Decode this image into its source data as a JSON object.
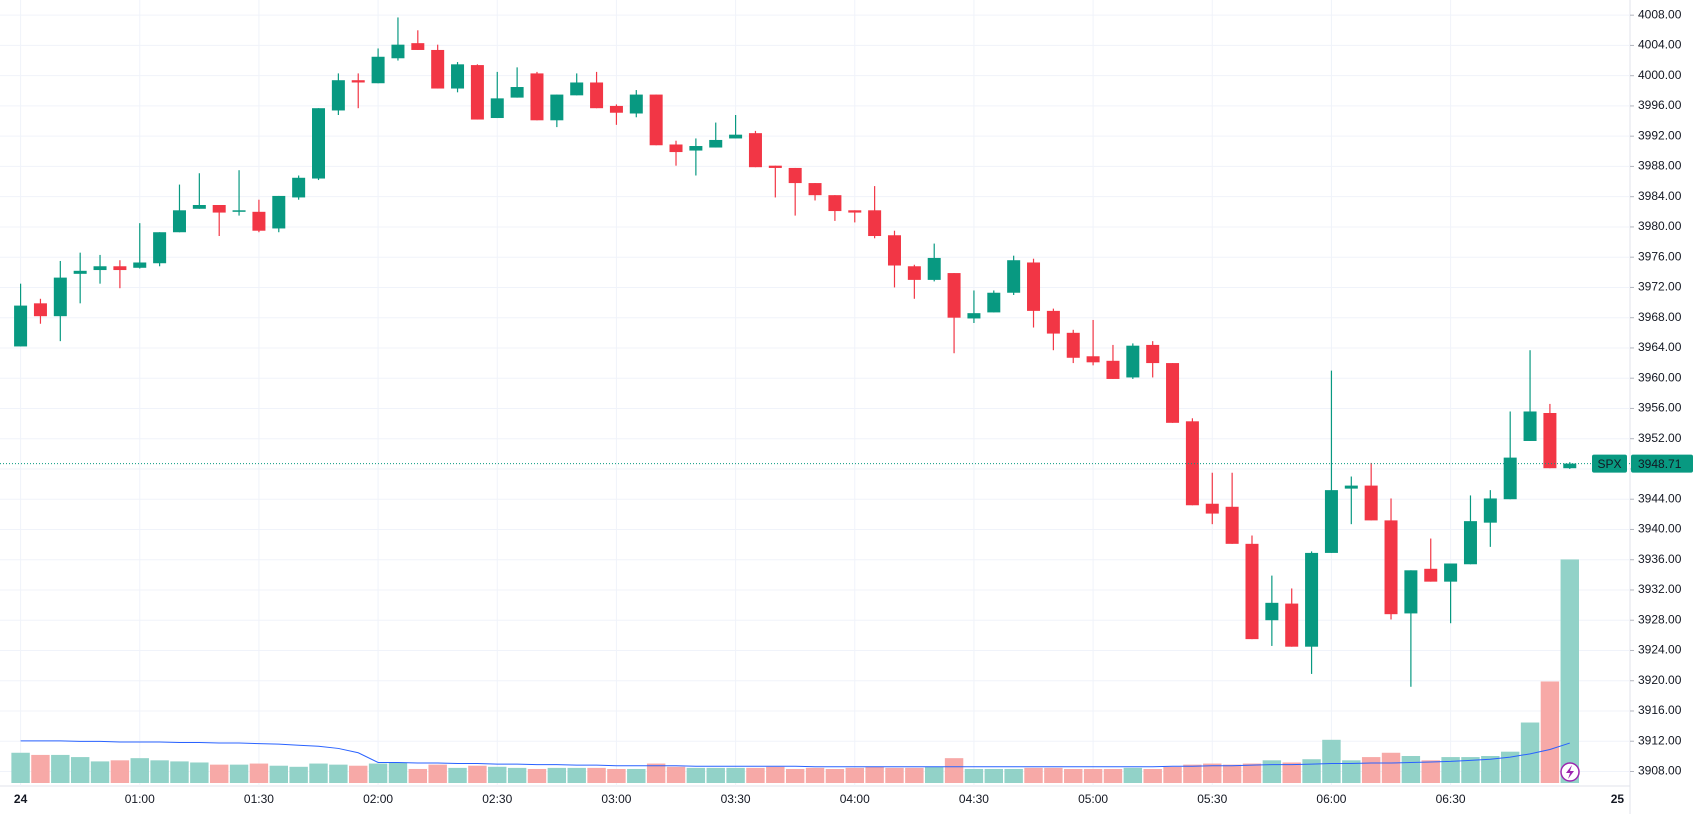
{
  "chart_data": {
    "type": "candlestick",
    "symbol": "SPX",
    "last": 3948.71,
    "categories": [
      "24",
      null,
      null,
      null,
      null,
      null,
      "01:00",
      null,
      null,
      null,
      null,
      null,
      "01:30",
      null,
      null,
      null,
      null,
      null,
      "02:00",
      null,
      null,
      null,
      null,
      null,
      "02:30",
      null,
      null,
      null,
      null,
      null,
      "03:00",
      null,
      null,
      null,
      null,
      null,
      "03:30",
      null,
      null,
      null,
      null,
      null,
      "04:00",
      null,
      null,
      null,
      null,
      null,
      "04:30",
      null,
      null,
      null,
      null,
      null,
      "05:00",
      null,
      null,
      null,
      null,
      null,
      "05:30",
      null,
      null,
      null,
      null,
      null,
      "06:00",
      null,
      null,
      null,
      null,
      null,
      "06:30",
      null,
      null,
      null,
      null,
      null,
      null
    ],
    "next_day_label": "25",
    "open": [
      3964.2,
      3969.9,
      3968.2,
      3973.8,
      3974.3,
      3974.8,
      3974.6,
      3975.2,
      3979.3,
      3982.4,
      3982.9,
      3982.0,
      3982.0,
      3979.8,
      3983.9,
      3986.4,
      3995.4,
      3999.4,
      3999.0,
      4002.3,
      4004.3,
      4003.4,
      3998.3,
      4001.4,
      3994.4,
      3997.1,
      4000.3,
      3994.1,
      3997.4,
      3999.1,
      3996.0,
      3995.0,
      3997.5,
      3990.9,
      3990.1,
      3990.5,
      3991.7,
      3992.4,
      3988.1,
      3987.8,
      3985.8,
      3984.2,
      3982.2,
      3982.2,
      3978.9,
      3974.8,
      3973.0,
      3973.9,
      3967.9,
      3968.7,
      3971.3,
      3975.3,
      3968.9,
      3966.0,
      3962.9,
      3962.3,
      3960.1,
      3964.4,
      3962.0,
      3954.3,
      3943.4,
      3943.0,
      3938.1,
      3928.0,
      3930.2,
      3924.5,
      3936.9,
      3945.4,
      3945.8,
      3941.2,
      3928.9,
      3934.8,
      3933.1,
      3935.4,
      3940.9,
      3944.0,
      3951.7,
      3955.4,
      3948.1
    ],
    "high": [
      3972.5,
      3970.5,
      3975.5,
      3976.6,
      3976.3,
      3975.6,
      3980.5,
      3979.3,
      3985.6,
      3987.1,
      3982.9,
      3987.5,
      3983.6,
      3984.1,
      3986.8,
      3995.7,
      4000.3,
      4000.3,
      4003.6,
      4007.7,
      4006.0,
      4004.1,
      4001.8,
      4001.5,
      4000.5,
      4001.1,
      4000.5,
      3997.5,
      4000.3,
      4000.5,
      3996.2,
      3998.1,
      3997.5,
      3991.4,
      3991.7,
      3993.8,
      3994.8,
      3992.7,
      3988.1,
      3987.8,
      3985.8,
      3984.2,
      3982.2,
      3985.4,
      3979.5,
      3975.0,
      3977.8,
      3973.9,
      3971.6,
      3971.6,
      3976.2,
      3975.8,
      3969.2,
      3966.4,
      3967.7,
      3964.4,
      3964.6,
      3964.9,
      3962.0,
      3954.7,
      3947.5,
      3947.5,
      3939.2,
      3933.9,
      3932.2,
      3937.1,
      3961.0,
      3947.0,
      3948.8,
      3944.1,
      3934.6,
      3938.8,
      3935.5,
      3944.5,
      3945.2,
      3955.6,
      3963.7,
      3956.6,
      3948.9
    ],
    "low": [
      3964.2,
      3967.2,
      3964.9,
      3969.9,
      3972.5,
      3971.9,
      3974.5,
      3974.8,
      3979.3,
      3982.4,
      3978.8,
      3981.5,
      3979.3,
      3979.3,
      3983.6,
      3986.2,
      3994.8,
      3995.7,
      3999.0,
      4002.0,
      4003.4,
      3998.3,
      3997.8,
      3994.2,
      3994.4,
      3997.1,
      3994.1,
      3993.2,
      3997.4,
      3995.7,
      3993.5,
      3994.5,
      3990.8,
      3988.1,
      3986.8,
      3990.5,
      3991.7,
      3987.9,
      3983.9,
      3981.5,
      3983.5,
      3980.8,
      3980.6,
      3978.5,
      3972.0,
      3970.5,
      3972.8,
      3963.3,
      3967.3,
      3968.7,
      3971.0,
      3966.7,
      3963.7,
      3962.0,
      3961.7,
      3959.9,
      3959.9,
      3960.1,
      3954.1,
      3943.2,
      3940.7,
      3938.1,
      3925.5,
      3924.6,
      3924.5,
      3920.9,
      3936.9,
      3940.7,
      3941.2,
      3928.1,
      3919.2,
      3933.1,
      3927.6,
      3935.4,
      3937.7,
      3944.0,
      3951.7,
      3948.1,
      3948.0
    ],
    "close": [
      3969.6,
      3968.2,
      3973.3,
      3974.2,
      3974.8,
      3974.3,
      3975.3,
      3979.3,
      3982.2,
      3982.9,
      3981.9,
      3982.2,
      3979.5,
      3984.1,
      3986.5,
      3995.7,
      3999.4,
      3999.1,
      4002.5,
      4004.1,
      4003.4,
      3998.3,
      4001.5,
      3994.2,
      3997.0,
      3998.5,
      3994.1,
      3997.5,
      3999.1,
      3995.7,
      3995.1,
      3997.5,
      3990.8,
      3989.9,
      3990.7,
      3991.5,
      3992.2,
      3987.9,
      3987.8,
      3985.8,
      3984.2,
      3982.1,
      3981.9,
      3978.8,
      3974.9,
      3973.0,
      3975.9,
      3968.0,
      3968.6,
      3971.3,
      3975.6,
      3968.9,
      3965.9,
      3962.7,
      3962.1,
      3959.9,
      3964.3,
      3962.0,
      3954.1,
      3943.2,
      3942.1,
      3938.1,
      3925.5,
      3930.3,
      3924.5,
      3936.9,
      3945.2,
      3945.8,
      3941.2,
      3928.8,
      3934.6,
      3933.1,
      3935.5,
      3941.1,
      3944.1,
      3949.5,
      3955.6,
      3948.1,
      3948.71
    ],
    "volume": [
      28,
      26,
      26,
      24,
      20,
      21,
      23,
      21,
      20,
      19,
      17,
      17,
      18,
      16,
      15,
      18,
      17,
      16,
      18,
      19,
      13,
      17,
      14,
      16,
      15,
      14,
      13,
      14,
      14,
      14,
      13,
      13,
      18,
      15,
      14,
      14,
      14,
      14,
      15,
      13,
      14,
      13,
      14,
      15,
      14,
      14,
      15,
      23,
      13,
      13,
      13,
      14,
      14,
      13,
      13,
      13,
      14,
      13,
      15,
      17,
      18,
      17,
      18,
      21,
      19,
      22,
      40,
      21,
      24,
      28,
      25,
      21,
      24,
      24,
      25,
      29,
      56,
      94,
      207
    ],
    "volume_ma": [
      39,
      39,
      39,
      38.5,
      38.5,
      38,
      38,
      38,
      37.5,
      37.5,
      37,
      37,
      36.5,
      36,
      35,
      34,
      32,
      28,
      19,
      19,
      18.5,
      18.5,
      18,
      18,
      17.5,
      17.5,
      17,
      17,
      16.5,
      16.5,
      16,
      16,
      16,
      16,
      15.5,
      15.5,
      15.5,
      15.5,
      15.5,
      15.5,
      15,
      15,
      15,
      15,
      15,
      15,
      15,
      15,
      15,
      15,
      15,
      15,
      15,
      15,
      15,
      15,
      15,
      15,
      15.5,
      15.5,
      16,
      16,
      16.5,
      17,
      17,
      17.5,
      18,
      18,
      18.5,
      18.5,
      19,
      19.5,
      20,
      21,
      22,
      24,
      27,
      31,
      37
    ],
    "vlim": [
      0,
      250
    ],
    "up_color": "#089981",
    "down_color": "#f23645",
    "volume_up_color": "#92d2c8",
    "volume_down_color": "#f7a9a7",
    "ma_color": "#2962ff",
    "ylim": [
      3908,
      4008
    ],
    "yticks": [
      {
        "value": 3908,
        "label": "3908.00"
      },
      {
        "value": 3912,
        "label": "3912.00"
      },
      {
        "value": 3916,
        "label": "3916.00"
      },
      {
        "value": 3920,
        "label": "3920.00"
      },
      {
        "value": 3924,
        "label": "3924.00"
      },
      {
        "value": 3928,
        "label": "3928.00"
      },
      {
        "value": 3932,
        "label": "3932.00"
      },
      {
        "value": 3936,
        "label": "3936.00"
      },
      {
        "value": 3940,
        "label": "3940.00"
      },
      {
        "value": 3944,
        "label": "3944.00"
      },
      {
        "value": 3948,
        "label": "3948.00"
      },
      {
        "value": 3952,
        "label": "3952.00"
      },
      {
        "value": 3956,
        "label": "3956.00"
      },
      {
        "value": 3960,
        "label": "3960.00"
      },
      {
        "value": 3964,
        "label": "3964.00"
      },
      {
        "value": 3968,
        "label": "3968.00"
      },
      {
        "value": 3972,
        "label": "3972.00"
      },
      {
        "value": 3976,
        "label": "3976.00"
      },
      {
        "value": 3980,
        "label": "3980.00"
      },
      {
        "value": 3984,
        "label": "3984.00"
      },
      {
        "value": 3988,
        "label": "3988.00"
      },
      {
        "value": 3992,
        "label": "3992.00"
      },
      {
        "value": 3996,
        "label": "3996.00"
      },
      {
        "value": 4000,
        "label": "4000.00"
      },
      {
        "value": 4004,
        "label": "4004.00"
      },
      {
        "value": 4008,
        "label": "4008.00"
      }
    ],
    "grid": true
  }
}
